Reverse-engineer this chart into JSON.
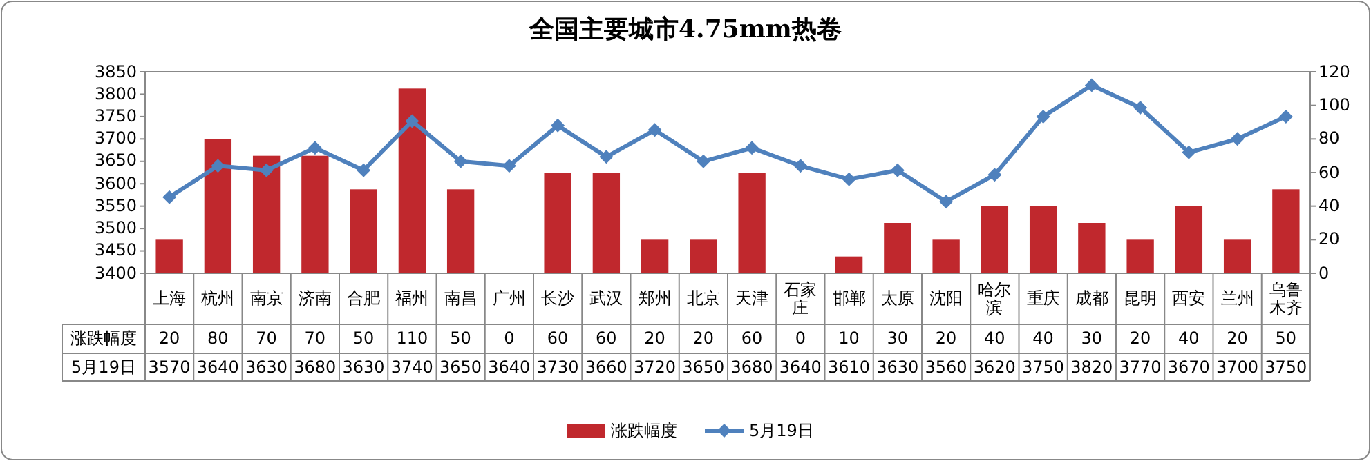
{
  "chart_data": {
    "type": "bar",
    "title": "全国主要城市4.75mm热卷",
    "categories": [
      "上海",
      "杭州",
      "南京",
      "济南",
      "合肥",
      "福州",
      "南昌",
      "广州",
      "长沙",
      "武汉",
      "郑州",
      "北京",
      "天津",
      "石家庄",
      "邯郸",
      "太原",
      "沈阳",
      "哈尔滨",
      "重庆",
      "成都",
      "昆明",
      "西安",
      "兰州",
      "乌鲁木齐"
    ],
    "series": [
      {
        "name": "涨跌幅度",
        "axis": "y2",
        "color": "#c0282d",
        "values": [
          20,
          80,
          70,
          70,
          50,
          110,
          50,
          0,
          60,
          60,
          20,
          20,
          60,
          0,
          10,
          30,
          20,
          40,
          40,
          30,
          20,
          40,
          20,
          50
        ]
      },
      {
        "name": "5月19日",
        "type": "line",
        "axis": "y",
        "color": "#4f81bd",
        "values": [
          3570,
          3640,
          3630,
          3680,
          3630,
          3740,
          3650,
          3640,
          3730,
          3660,
          3720,
          3650,
          3680,
          3640,
          3610,
          3630,
          3560,
          3620,
          3750,
          3820,
          3770,
          3670,
          3700,
          3750
        ]
      }
    ],
    "ylim": [
      3400,
      3850
    ],
    "yticks": [
      3400,
      3450,
      3500,
      3550,
      3600,
      3650,
      3700,
      3750,
      3800,
      3850
    ],
    "y2lim": [
      0,
      120
    ],
    "y2ticks": [
      0,
      20,
      40,
      60,
      80,
      100,
      120
    ],
    "marker": "diamond",
    "data_labels": true,
    "legend": "bottom",
    "grid": false
  }
}
